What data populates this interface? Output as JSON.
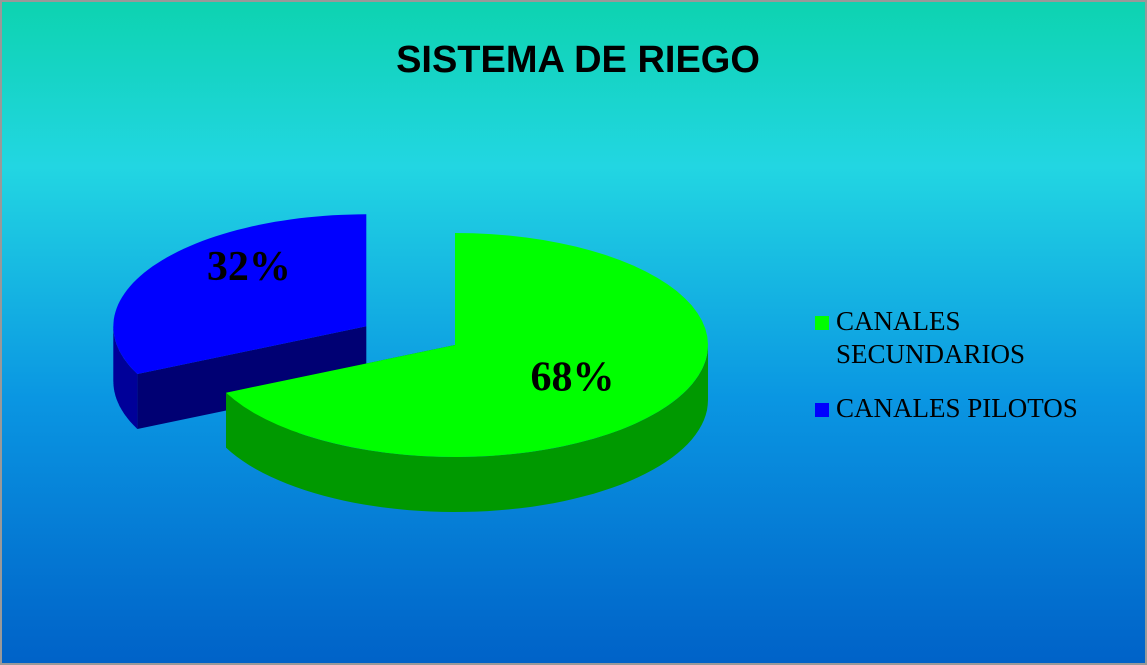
{
  "chart_data": {
    "type": "pie3d",
    "title": "SISTEMA DE RIEGO",
    "categories": [
      "CANALES SECUNDARIOS",
      "CANALES PILOTOS"
    ],
    "values": [
      68,
      32
    ],
    "value_labels": [
      "68%",
      "32%"
    ],
    "colors": [
      "#00ff00",
      "#0000ff"
    ],
    "legend": "right"
  }
}
